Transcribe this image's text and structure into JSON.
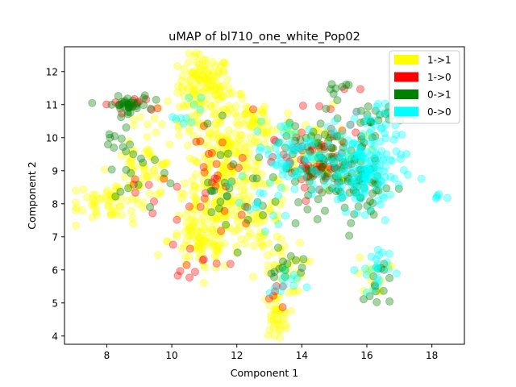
{
  "chart_data": {
    "type": "scatter",
    "title": "uMAP of bl710_one_white_Pop02",
    "xlabel": "Component 1",
    "ylabel": "Component 2",
    "xlim": [
      6.7,
      19.0
    ],
    "ylim": [
      3.75,
      12.75
    ],
    "xticks": [
      "8",
      "10",
      "12",
      "14",
      "16",
      "18"
    ],
    "yticks": [
      "4",
      "5",
      "6",
      "7",
      "8",
      "9",
      "10",
      "11",
      "12"
    ],
    "grid": false,
    "legend": {
      "placement": "top-right"
    },
    "marker_alpha": 0.35,
    "series": [
      {
        "name": "1->1",
        "color": "#ffff00",
        "clusters": [
          {
            "cx": 11.0,
            "cy": 11.6,
            "sx": 0.4,
            "sy": 0.45,
            "n": 120
          },
          {
            "cx": 11.6,
            "cy": 9.0,
            "sx": 0.6,
            "sy": 1.0,
            "n": 230
          },
          {
            "cx": 10.9,
            "cy": 6.9,
            "sx": 0.5,
            "sy": 0.5,
            "n": 90
          },
          {
            "cx": 8.2,
            "cy": 8.1,
            "sx": 0.6,
            "sy": 0.3,
            "n": 55
          },
          {
            "cx": 9.1,
            "cy": 9.0,
            "sx": 0.5,
            "sy": 0.4,
            "n": 55
          },
          {
            "cx": 13.2,
            "cy": 4.6,
            "sx": 0.2,
            "sy": 0.35,
            "n": 40
          },
          {
            "cx": 12.6,
            "cy": 10.4,
            "sx": 0.6,
            "sy": 0.4,
            "n": 60
          },
          {
            "cx": 12.6,
            "cy": 7.5,
            "sx": 0.5,
            "sy": 0.6,
            "n": 50
          },
          {
            "cx": 14.5,
            "cy": 9.6,
            "sx": 0.7,
            "sy": 0.6,
            "n": 55
          },
          {
            "cx": 13.3,
            "cy": 6.1,
            "sx": 0.4,
            "sy": 0.4,
            "n": 30
          },
          {
            "cx": 16.2,
            "cy": 5.8,
            "sx": 0.25,
            "sy": 0.3,
            "n": 14
          },
          {
            "cx": 10.0,
            "cy": 10.4,
            "sx": 0.6,
            "sy": 0.4,
            "n": 25
          }
        ]
      },
      {
        "name": "1->0",
        "color": "#ff0000",
        "clusters": [
          {
            "cx": 14.4,
            "cy": 9.2,
            "sx": 0.6,
            "sy": 0.5,
            "n": 70
          },
          {
            "cx": 11.5,
            "cy": 8.8,
            "sx": 0.6,
            "sy": 1.0,
            "n": 30
          },
          {
            "cx": 8.7,
            "cy": 11.0,
            "sx": 0.4,
            "sy": 0.12,
            "n": 12
          },
          {
            "cx": 13.2,
            "cy": 5.2,
            "sx": 0.2,
            "sy": 0.3,
            "n": 6
          },
          {
            "cx": 10.8,
            "cy": 6.4,
            "sx": 0.4,
            "sy": 0.3,
            "n": 10
          },
          {
            "cx": 15.2,
            "cy": 10.8,
            "sx": 0.6,
            "sy": 0.4,
            "n": 8
          },
          {
            "cx": 9.2,
            "cy": 8.4,
            "sx": 0.6,
            "sy": 0.4,
            "n": 8
          }
        ]
      },
      {
        "name": "0->1",
        "color": "#008000",
        "clusters": [
          {
            "cx": 8.6,
            "cy": 11.0,
            "sx": 0.35,
            "sy": 0.12,
            "n": 35
          },
          {
            "cx": 14.9,
            "cy": 9.1,
            "sx": 0.8,
            "sy": 0.6,
            "n": 110
          },
          {
            "cx": 15.9,
            "cy": 8.5,
            "sx": 0.35,
            "sy": 0.5,
            "n": 40
          },
          {
            "cx": 16.2,
            "cy": 10.6,
            "sx": 0.3,
            "sy": 0.25,
            "n": 20
          },
          {
            "cx": 16.3,
            "cy": 5.6,
            "sx": 0.2,
            "sy": 0.4,
            "n": 14
          },
          {
            "cx": 13.6,
            "cy": 6.0,
            "sx": 0.3,
            "sy": 0.3,
            "n": 15
          },
          {
            "cx": 8.6,
            "cy": 9.2,
            "sx": 0.5,
            "sy": 0.8,
            "n": 25
          },
          {
            "cx": 15.1,
            "cy": 11.3,
            "sx": 0.3,
            "sy": 0.3,
            "n": 10
          },
          {
            "cx": 11.8,
            "cy": 8.5,
            "sx": 0.6,
            "sy": 0.8,
            "n": 25
          }
        ]
      },
      {
        "name": "0->0",
        "color": "#00ffff",
        "clusters": [
          {
            "cx": 15.9,
            "cy": 9.0,
            "sx": 0.6,
            "sy": 0.6,
            "n": 160
          },
          {
            "cx": 13.7,
            "cy": 9.6,
            "sx": 0.6,
            "sy": 0.5,
            "n": 70
          },
          {
            "cx": 16.2,
            "cy": 6.0,
            "sx": 0.25,
            "sy": 0.4,
            "n": 22
          },
          {
            "cx": 16.1,
            "cy": 10.4,
            "sx": 0.35,
            "sy": 0.3,
            "n": 20
          },
          {
            "cx": 18.2,
            "cy": 8.15,
            "sx": 0.15,
            "sy": 0.08,
            "n": 5
          },
          {
            "cx": 13.5,
            "cy": 5.6,
            "sx": 0.25,
            "sy": 0.3,
            "n": 12
          },
          {
            "cx": 10.5,
            "cy": 10.7,
            "sx": 0.2,
            "sy": 0.25,
            "n": 10
          },
          {
            "cx": 12.8,
            "cy": 7.8,
            "sx": 0.4,
            "sy": 0.5,
            "n": 15
          }
        ]
      }
    ]
  }
}
